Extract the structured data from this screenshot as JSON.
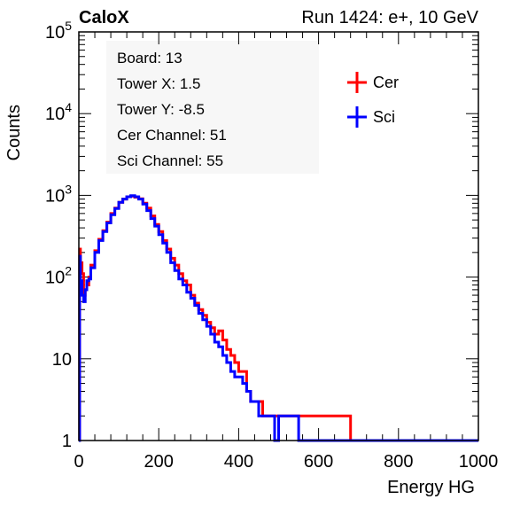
{
  "header": {
    "left_title": "CaloX",
    "right_title": "Run 1424: e+, 10 GeV"
  },
  "info_box": {
    "lines": [
      "Board: 13",
      "Tower X: 1.5",
      "Tower Y: -8.5",
      "Cer Channel: 51",
      "Sci Channel: 55"
    ]
  },
  "legend": {
    "entries": [
      {
        "label": "Cer",
        "color": "#ff0000"
      },
      {
        "label": "Sci",
        "color": "#0000ff"
      }
    ]
  },
  "chart_data": {
    "type": "line",
    "xlabel": "Energy HG",
    "ylabel": "Counts",
    "xlim": [
      0,
      1000
    ],
    "ylim": [
      1,
      100000
    ],
    "yscale": "log",
    "x_ticks": [
      0,
      200,
      400,
      600,
      800,
      1000
    ],
    "x_tick_labels": [
      "0",
      "200",
      "400",
      "600",
      "800",
      "1000"
    ],
    "y_ticks": [
      1,
      10,
      100,
      1000,
      10000,
      100000
    ],
    "y_tick_labels": [
      "1",
      "10",
      "10^2",
      "10^3",
      "10^4",
      "10^5"
    ],
    "grid": false,
    "legend_position": "top-right",
    "series": [
      {
        "name": "Cer",
        "color": "#ff0000",
        "x": [
          0,
          2,
          4,
          8,
          12,
          16,
          20,
          25,
          30,
          40,
          50,
          60,
          70,
          80,
          90,
          100,
          110,
          120,
          130,
          140,
          150,
          160,
          170,
          180,
          190,
          200,
          210,
          220,
          230,
          240,
          250,
          260,
          270,
          280,
          290,
          300,
          310,
          320,
          330,
          340,
          350,
          360,
          370,
          380,
          390,
          400,
          410,
          420,
          430,
          440,
          450,
          460,
          470,
          480,
          490,
          500,
          510,
          520,
          530,
          540,
          550,
          560,
          570,
          580,
          590,
          600,
          610,
          620,
          630,
          640,
          650,
          660,
          670,
          680,
          690,
          700,
          1000
        ],
        "y": [
          1,
          220,
          150,
          110,
          60,
          70,
          80,
          100,
          140,
          210,
          290,
          370,
          470,
          600,
          700,
          820,
          900,
          960,
          980,
          950,
          910,
          800,
          700,
          560,
          440,
          360,
          280,
          220,
          170,
          140,
          110,
          90,
          80,
          60,
          48,
          40,
          34,
          28,
          24,
          20,
          22,
          17,
          13,
          11,
          9,
          7,
          7,
          4,
          3,
          3,
          3,
          2,
          2,
          2,
          2,
          2,
          2,
          2,
          2,
          2,
          2,
          2,
          2,
          2,
          2,
          2,
          2,
          2,
          2,
          2,
          2,
          2,
          2,
          1,
          1,
          1,
          1
        ]
      },
      {
        "name": "Sci",
        "color": "#0000ff",
        "x": [
          0,
          2,
          4,
          8,
          12,
          16,
          20,
          25,
          30,
          40,
          50,
          60,
          70,
          80,
          90,
          100,
          110,
          120,
          130,
          140,
          150,
          160,
          170,
          180,
          190,
          200,
          210,
          220,
          230,
          240,
          250,
          260,
          270,
          280,
          290,
          300,
          310,
          320,
          330,
          340,
          350,
          360,
          370,
          380,
          390,
          400,
          410,
          420,
          430,
          440,
          450,
          460,
          470,
          480,
          490,
          500,
          510,
          520,
          530,
          540,
          550,
          560,
          570,
          580,
          590,
          600,
          620,
          640,
          660,
          680,
          700,
          1000
        ],
        "y": [
          1,
          180,
          90,
          60,
          50,
          70,
          90,
          95,
          130,
          200,
          280,
          360,
          460,
          580,
          690,
          820,
          900,
          960,
          990,
          960,
          900,
          780,
          650,
          520,
          420,
          330,
          260,
          200,
          150,
          120,
          95,
          80,
          65,
          55,
          45,
          36,
          30,
          25,
          20,
          16,
          14,
          11,
          9,
          7,
          6,
          6,
          5,
          4,
          3,
          3,
          2,
          2,
          2,
          2,
          1,
          2,
          2,
          2,
          2,
          2,
          1,
          1,
          1,
          1,
          1,
          1,
          1,
          1,
          1,
          1,
          1,
          1
        ]
      }
    ]
  }
}
